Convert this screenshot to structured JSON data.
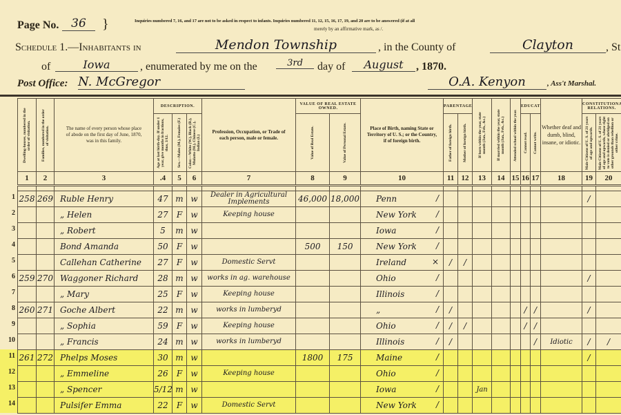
{
  "header": {
    "page_label": "Page No.",
    "page_number": "36",
    "note_line1": "Inquiries numbered 7, 16, and 17 are not to be asked in respect to infants. Inquiries numbered 11, 12, 15, 16, 17, 19, and 20 are to be answered (if at all",
    "note_line2": "merely by an affirmative mark, as /.",
    "schedule_label": "Schedule 1.—Inhabitants in",
    "township": "Mendon Township",
    "county_label": ", in the County of",
    "county": "Clayton",
    "state_label": ", State",
    "of_label": "of",
    "state": "Iowa",
    "enumerated_label": ", enumerated by me on the",
    "day": "3rd",
    "day_of_label": "day of",
    "month": "August",
    "year": ", 1870.",
    "post_office_label": "Post Office:",
    "post_office": "N. McGregor",
    "marshal": "O.A. Kenyon",
    "marshal_label": ", Ass't Marshal."
  },
  "columns": {
    "groups": {
      "description": "DESCRIPTION.",
      "real_estate": "VALUE OF REAL ESTATE OWNED.",
      "parentage": "PARENTAGE.",
      "education": "EDUCATION.",
      "constitutional": "CONSTITUTIONAL RELATIONS."
    },
    "c1": "Dwelling-houses, numbered in the order of visitation.",
    "c2": "Families, numbered in the order of visitation.",
    "c3": "The name of every person whose place of abode on the first day of June, 1870, was in this family.",
    "c4": "Age at last birth-day. If under 1 year, give months in fractions, thus, 3/12.",
    "c5": "Sex.—Males (M.), Females (F.)",
    "c6": "Color.—White (W.), Black (B.), Mulatto (M.), Chinese (C.), Indian (I.)",
    "c7": "Profession, Occupation, or Trade of each person, male or female.",
    "c8": "Value of Real Estate.",
    "c9": "Value of Personal Estate.",
    "c10": "Place of Birth, naming State or Territory of U. S.; or the Country, if of foreign birth.",
    "c11": "Father of foreign birth.",
    "c12": "Mother of foreign birth.",
    "c13": "If born within the year, state month (Jan., Feb., &c.)",
    "c14": "If married within the year, state month (Jan., Feb., &c.)",
    "c15": "Attended school within the year.",
    "c16": "Cannot read.",
    "c17": "Cannot write.",
    "c18": "Whether deaf and dumb, blind, insane, or idiotic.",
    "c19": "Male Citizens of U. S. of 21 years of age and upwards.",
    "c20": "Male Citizens of U. S. of 21 years of age and upwards, whose right to vote is denied or abridged on other grounds than rebellion or other crime.",
    "numbers": [
      "1",
      "2",
      "3",
      ".4",
      "5",
      "6",
      "7",
      "8",
      "9",
      "10",
      "11",
      "12",
      "13",
      "14",
      "15",
      "16",
      "17",
      "18",
      "19",
      "20"
    ]
  },
  "highlight_color": "#f5f066",
  "rows": [
    {
      "n": "1",
      "dwelling": "258",
      "family": "269",
      "name": "Ruble Henry",
      "age": "47",
      "sex": "m",
      "color": "w",
      "occupation": "Dealer in Agricultural Implements",
      "real": "46,000",
      "personal": "18,000",
      "birth": "Penn",
      "c10mark": "/",
      "c11": "",
      "c12": "",
      "c13": "",
      "c14": "",
      "c15": "",
      "c16": "",
      "c17": "",
      "c18": "",
      "c19": "/",
      "c20": "",
      "highlighted": false
    },
    {
      "n": "2",
      "dwelling": "",
      "family": "",
      "name": "„ Helen",
      "age": "27",
      "sex": "F",
      "color": "w",
      "occupation": "Keeping house",
      "real": "",
      "personal": "",
      "birth": "New York",
      "c10mark": "/",
      "c11": "",
      "c12": "",
      "c13": "",
      "c14": "",
      "c15": "",
      "c16": "",
      "c17": "",
      "c18": "",
      "c19": "",
      "c20": "",
      "highlighted": false
    },
    {
      "n": "3",
      "dwelling": "",
      "family": "",
      "name": "„ Robert",
      "age": "5",
      "sex": "m",
      "color": "w",
      "occupation": "",
      "real": "",
      "personal": "",
      "birth": "Iowa",
      "c10mark": "/",
      "c11": "",
      "c12": "",
      "c13": "",
      "c14": "",
      "c15": "",
      "c16": "",
      "c17": "",
      "c18": "",
      "c19": "",
      "c20": "",
      "highlighted": false
    },
    {
      "n": "4",
      "dwelling": "",
      "family": "",
      "name": "Bond Amanda",
      "age": "50",
      "sex": "F",
      "color": "w",
      "occupation": "",
      "real": "500",
      "personal": "150",
      "birth": "New York",
      "c10mark": "/",
      "c11": "",
      "c12": "",
      "c13": "",
      "c14": "",
      "c15": "",
      "c16": "",
      "c17": "",
      "c18": "",
      "c19": "",
      "c20": "",
      "highlighted": false
    },
    {
      "n": "5",
      "dwelling": "",
      "family": "",
      "name": "Callehan Catherine",
      "age": "27",
      "sex": "F",
      "color": "w",
      "occupation": "Domestic Servt",
      "real": "",
      "personal": "",
      "birth": "Ireland",
      "c10mark": "×",
      "c11": "/",
      "c12": "/",
      "c13": "",
      "c14": "",
      "c15": "",
      "c16": "",
      "c17": "",
      "c18": "",
      "c19": "",
      "c20": "",
      "highlighted": false
    },
    {
      "n": "6",
      "dwelling": "259",
      "family": "270",
      "name": "Waggoner Richard",
      "age": "28",
      "sex": "m",
      "color": "w",
      "occupation": "works in ag. warehouse",
      "real": "",
      "personal": "",
      "birth": "Ohio",
      "c10mark": "/",
      "c11": "",
      "c12": "",
      "c13": "",
      "c14": "",
      "c15": "",
      "c16": "",
      "c17": "",
      "c18": "",
      "c19": "/",
      "c20": "",
      "highlighted": false
    },
    {
      "n": "7",
      "dwelling": "",
      "family": "",
      "name": "„ Mary",
      "age": "25",
      "sex": "F",
      "color": "w",
      "occupation": "Keeping house",
      "real": "",
      "personal": "",
      "birth": "Illinois",
      "c10mark": "/",
      "c11": "",
      "c12": "",
      "c13": "",
      "c14": "",
      "c15": "",
      "c16": "",
      "c17": "",
      "c18": "",
      "c19": "",
      "c20": "",
      "highlighted": false
    },
    {
      "n": "8",
      "dwelling": "260",
      "family": "271",
      "name": "Goche Albert",
      "age": "22",
      "sex": "m",
      "color": "w",
      "occupation": "works in lumberyd",
      "real": "",
      "personal": "",
      "birth": "„",
      "c10mark": "/",
      "c11": "/",
      "c12": "",
      "c13": "",
      "c14": "",
      "c15": "",
      "c16": "/",
      "c17": "/",
      "c18": "",
      "c19": "/",
      "c20": "",
      "highlighted": false
    },
    {
      "n": "9",
      "dwelling": "",
      "family": "",
      "name": "„ Sophia",
      "age": "59",
      "sex": "F",
      "color": "w",
      "occupation": "Keeping house",
      "real": "",
      "personal": "",
      "birth": "Ohio",
      "c10mark": "/",
      "c11": "/",
      "c12": "/",
      "c13": "",
      "c14": "",
      "c15": "",
      "c16": "/",
      "c17": "/",
      "c18": "",
      "c19": "",
      "c20": "",
      "highlighted": false
    },
    {
      "n": "10",
      "dwelling": "",
      "family": "",
      "name": "„ Francis",
      "age": "24",
      "sex": "m",
      "color": "w",
      "occupation": "works in lumberyd",
      "real": "",
      "personal": "",
      "birth": "Illinois",
      "c10mark": "/",
      "c11": "/",
      "c12": "",
      "c13": "",
      "c14": "",
      "c15": "",
      "c16": "",
      "c17": "/",
      "c18": "Idiotic",
      "c19": "/",
      "c20": "/",
      "highlighted": false
    },
    {
      "n": "11",
      "dwelling": "261",
      "family": "272",
      "name": "Phelps Moses",
      "age": "30",
      "sex": "m",
      "color": "w",
      "occupation": "",
      "real": "1800",
      "personal": "175",
      "birth": "Maine",
      "c10mark": "/",
      "c11": "",
      "c12": "",
      "c13": "",
      "c14": "",
      "c15": "",
      "c16": "",
      "c17": "",
      "c18": "",
      "c19": "/",
      "c20": "",
      "highlighted": true
    },
    {
      "n": "12",
      "dwelling": "",
      "family": "",
      "name": "„ Emmeline",
      "age": "26",
      "sex": "F",
      "color": "w",
      "occupation": "Keeping house",
      "real": "",
      "personal": "",
      "birth": "Ohio",
      "c10mark": "/",
      "c11": "",
      "c12": "",
      "c13": "",
      "c14": "",
      "c15": "",
      "c16": "",
      "c17": "",
      "c18": "",
      "c19": "",
      "c20": "",
      "highlighted": true
    },
    {
      "n": "13",
      "dwelling": "",
      "family": "",
      "name": "„ Spencer",
      "age": "5/12",
      "sex": "m",
      "color": "w",
      "occupation": "",
      "real": "",
      "personal": "",
      "birth": "Iowa",
      "c10mark": "/",
      "c11": "",
      "c12": "",
      "c13": "Jan",
      "c14": "",
      "c15": "",
      "c16": "",
      "c17": "",
      "c18": "",
      "c19": "",
      "c20": "",
      "highlighted": true
    },
    {
      "n": "14",
      "dwelling": "",
      "family": "",
      "name": "Pulsifer Emma",
      "age": "22",
      "sex": "F",
      "color": "w",
      "occupation": "Domestic Servt",
      "real": "",
      "personal": "",
      "birth": "New York",
      "c10mark": "/",
      "c11": "",
      "c12": "",
      "c13": "",
      "c14": "",
      "c15": "",
      "c16": "",
      "c17": "",
      "c18": "",
      "c19": "",
      "c20": "",
      "highlighted": true
    }
  ]
}
